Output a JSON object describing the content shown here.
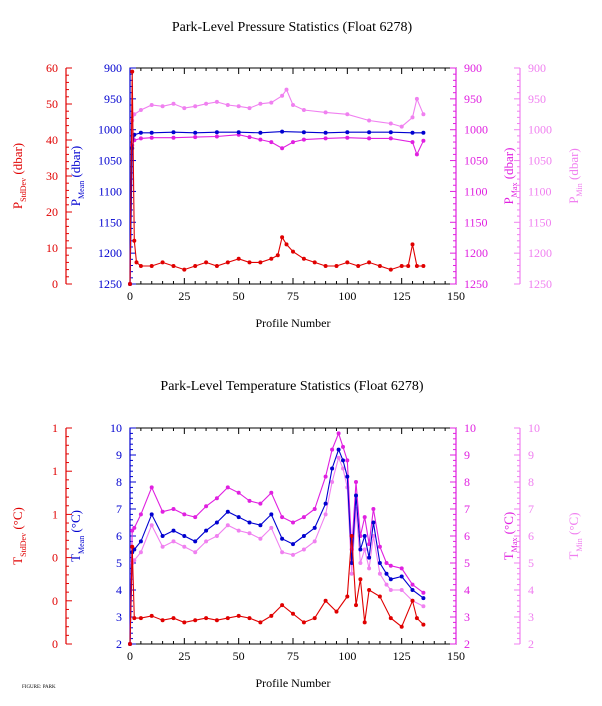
{
  "footer_text": "FIGURE: PARK",
  "colors": {
    "stddev": "#e00000",
    "mean": "#0000d0",
    "max": "#e020e0",
    "min": "#f080f0",
    "axis": "#000000"
  },
  "chart_data": [
    {
      "type": "line",
      "title": "Park-Level Pressure Statistics (Float 6278)",
      "xlabel": "Profile Number",
      "xlim": [
        0,
        150
      ],
      "x_ticks": [
        "0",
        "25",
        "50",
        "75",
        "100",
        "125",
        "150"
      ],
      "axes": [
        {
          "id": "stddev",
          "label_main": "P",
          "label_sub": "StdDev",
          "label_unit": " (dbar)",
          "ylim": [
            0,
            60
          ],
          "ticks": [
            "0",
            "10",
            "20",
            "30",
            "40",
            "50",
            "60"
          ],
          "color": "#e00000",
          "side": "left"
        },
        {
          "id": "mean",
          "label_main": "P",
          "label_sub": "Mean",
          "label_unit": " (dbar)",
          "ylim": [
            1250,
            900
          ],
          "ticks": [
            "1250",
            "1200",
            "1150",
            "1100",
            "1050",
            "1000",
            "950",
            "900"
          ],
          "color": "#0000d0",
          "side": "left"
        },
        {
          "id": "max",
          "label_main": "P",
          "label_sub": "Max",
          "label_unit": " (dbar)",
          "ylim": [
            1250,
            900
          ],
          "ticks": [
            "1250",
            "1200",
            "1150",
            "1100",
            "1050",
            "1000",
            "950",
            "900"
          ],
          "color": "#e020e0",
          "side": "right"
        },
        {
          "id": "min",
          "label_main": "P",
          "label_sub": "Min",
          "label_unit": " (dbar)",
          "ylim": [
            1250,
            900
          ],
          "ticks": [
            "1250",
            "1200",
            "1150",
            "1100",
            "1050",
            "1000",
            "950",
            "900"
          ],
          "color": "#f080f0",
          "side": "right"
        }
      ],
      "series": [
        {
          "axis": "stddev",
          "x": [
            0,
            1,
            2,
            3,
            5,
            10,
            15,
            20,
            25,
            30,
            35,
            40,
            45,
            50,
            55,
            60,
            65,
            68,
            70,
            72,
            75,
            80,
            85,
            90,
            95,
            100,
            105,
            110,
            115,
            120,
            125,
            128,
            130,
            132,
            135
          ],
          "y": [
            0,
            59,
            12,
            6,
            5,
            5,
            6,
            5,
            4,
            5,
            6,
            5,
            6,
            7,
            6,
            6,
            7,
            8,
            13,
            11,
            9,
            7,
            6,
            5,
            5,
            6,
            5,
            6,
            5,
            4,
            5,
            5,
            11,
            5,
            5
          ]
        },
        {
          "axis": "mean",
          "x": [
            0,
            1,
            2,
            5,
            10,
            20,
            30,
            40,
            50,
            60,
            70,
            80,
            90,
            100,
            110,
            120,
            130,
            135
          ],
          "y": [
            1250,
            1030,
            1008,
            1005,
            1005,
            1004,
            1005,
            1004,
            1004,
            1005,
            1003,
            1004,
            1005,
            1004,
            1004,
            1004,
            1005,
            1005
          ]
        },
        {
          "axis": "max",
          "x": [
            0,
            1,
            2,
            5,
            10,
            20,
            30,
            40,
            50,
            55,
            60,
            65,
            70,
            75,
            80,
            90,
            100,
            110,
            120,
            130,
            132,
            135
          ],
          "y": [
            1250,
            1025,
            1017,
            1014,
            1013,
            1013,
            1012,
            1011,
            1008,
            1012,
            1016,
            1020,
            1030,
            1020,
            1016,
            1014,
            1013,
            1014,
            1014,
            1020,
            1040,
            1018
          ]
        },
        {
          "axis": "min",
          "x": [
            0,
            1,
            2,
            5,
            10,
            15,
            20,
            25,
            30,
            35,
            40,
            45,
            50,
            55,
            60,
            65,
            70,
            72,
            75,
            80,
            90,
            100,
            110,
            120,
            125,
            130,
            132,
            135
          ],
          "y": [
            1250,
            985,
            975,
            968,
            960,
            962,
            958,
            965,
            962,
            958,
            955,
            960,
            962,
            965,
            958,
            956,
            945,
            935,
            960,
            968,
            972,
            975,
            985,
            990,
            995,
            980,
            950,
            975
          ]
        }
      ]
    },
    {
      "type": "line",
      "title": "Park-Level Temperature Statistics (Float 6278)",
      "xlabel": "Profile Number",
      "xlim": [
        0,
        150
      ],
      "x_ticks": [
        "0",
        "25",
        "50",
        "75",
        "100",
        "125",
        "150"
      ],
      "axes": [
        {
          "id": "stddev",
          "label_main": "T",
          "label_sub": "StdDev",
          "label_unit": " (°C)",
          "ylim": [
            0,
            1
          ],
          "ticks": [
            "0",
            "0",
            "0",
            "1",
            "1",
            "1"
          ],
          "color": "#e00000",
          "side": "left"
        },
        {
          "id": "mean",
          "label_main": "T",
          "label_sub": "Mean",
          "label_unit": " (°C)",
          "ylim": [
            2,
            10
          ],
          "ticks": [
            "2",
            "3",
            "4",
            "5",
            "6",
            "7",
            "8",
            "9",
            "10"
          ],
          "color": "#0000d0",
          "side": "left"
        },
        {
          "id": "max",
          "label_main": "T",
          "label_sub": "Max",
          "label_unit": " (°C)",
          "ylim": [
            2,
            10
          ],
          "ticks": [
            "2",
            "3",
            "4",
            "5",
            "6",
            "7",
            "8",
            "9",
            "10"
          ],
          "color": "#e020e0",
          "side": "right"
        },
        {
          "id": "min",
          "label_main": "T",
          "label_sub": "Min",
          "label_unit": " (°C)",
          "ylim": [
            2,
            10
          ],
          "ticks": [
            "2",
            "3",
            "4",
            "5",
            "6",
            "7",
            "8",
            "9",
            "10"
          ],
          "color": "#f080f0",
          "side": "right"
        }
      ],
      "series": [
        {
          "axis": "stddev",
          "x": [
            0,
            1,
            2,
            5,
            10,
            15,
            20,
            25,
            30,
            35,
            40,
            45,
            50,
            55,
            60,
            65,
            70,
            75,
            80,
            85,
            90,
            95,
            100,
            102,
            104,
            106,
            108,
            110,
            115,
            120,
            125,
            130,
            132,
            135
          ],
          "y": [
            0,
            0.45,
            0.12,
            0.12,
            0.13,
            0.11,
            0.12,
            0.1,
            0.11,
            0.12,
            0.11,
            0.12,
            0.13,
            0.12,
            0.1,
            0.13,
            0.18,
            0.14,
            0.1,
            0.12,
            0.2,
            0.15,
            0.22,
            0.5,
            0.18,
            0.3,
            0.1,
            0.25,
            0.22,
            0.12,
            0.08,
            0.2,
            0.12,
            0.09
          ]
        },
        {
          "axis": "mean",
          "x": [
            0,
            1,
            2,
            5,
            10,
            15,
            20,
            25,
            30,
            35,
            40,
            45,
            50,
            55,
            60,
            65,
            70,
            75,
            80,
            85,
            90,
            93,
            96,
            98,
            100,
            102,
            104,
            106,
            108,
            110,
            112,
            115,
            118,
            120,
            125,
            130,
            135
          ],
          "y": [
            2,
            5.4,
            5.5,
            5.8,
            6.8,
            6.0,
            6.2,
            6.0,
            5.8,
            6.2,
            6.5,
            6.9,
            6.7,
            6.5,
            6.4,
            6.8,
            5.9,
            5.7,
            6.0,
            6.3,
            7.2,
            8.5,
            9.2,
            8.8,
            8.2,
            5.0,
            7.5,
            5.5,
            6.0,
            5.2,
            6.5,
            5.0,
            4.6,
            4.4,
            4.5,
            4.0,
            3.7
          ]
        },
        {
          "axis": "max",
          "x": [
            0,
            1,
            2,
            5,
            10,
            15,
            20,
            25,
            30,
            35,
            40,
            45,
            50,
            55,
            60,
            65,
            70,
            75,
            80,
            85,
            90,
            93,
            96,
            98,
            100,
            102,
            104,
            106,
            108,
            110,
            112,
            115,
            118,
            120,
            125,
            130,
            135
          ],
          "y": [
            2,
            6.2,
            6.3,
            6.8,
            7.8,
            6.9,
            7.0,
            6.8,
            6.7,
            7.1,
            7.4,
            7.8,
            7.6,
            7.3,
            7.2,
            7.6,
            6.7,
            6.5,
            6.7,
            7.0,
            8.2,
            9.2,
            9.8,
            9.3,
            8.8,
            5.5,
            8.0,
            6.0,
            6.7,
            5.7,
            7.0,
            5.6,
            5.0,
            4.9,
            4.8,
            4.2,
            3.9
          ]
        },
        {
          "axis": "min",
          "x": [
            0,
            1,
            2,
            5,
            10,
            15,
            20,
            25,
            30,
            35,
            40,
            45,
            50,
            55,
            60,
            65,
            70,
            75,
            80,
            85,
            90,
            93,
            96,
            98,
            100,
            102,
            104,
            106,
            108,
            110,
            112,
            115,
            118,
            120,
            125,
            130,
            135
          ],
          "y": [
            2,
            5.0,
            5.1,
            5.4,
            6.4,
            5.6,
            5.8,
            5.6,
            5.4,
            5.8,
            6.0,
            6.4,
            6.2,
            6.1,
            5.9,
            6.3,
            5.4,
            5.3,
            5.5,
            5.8,
            6.8,
            8.0,
            8.9,
            8.5,
            7.8,
            4.6,
            7.0,
            5.0,
            5.5,
            4.8,
            6.0,
            4.6,
            4.2,
            4.0,
            4.0,
            3.6,
            3.4
          ]
        }
      ]
    }
  ]
}
